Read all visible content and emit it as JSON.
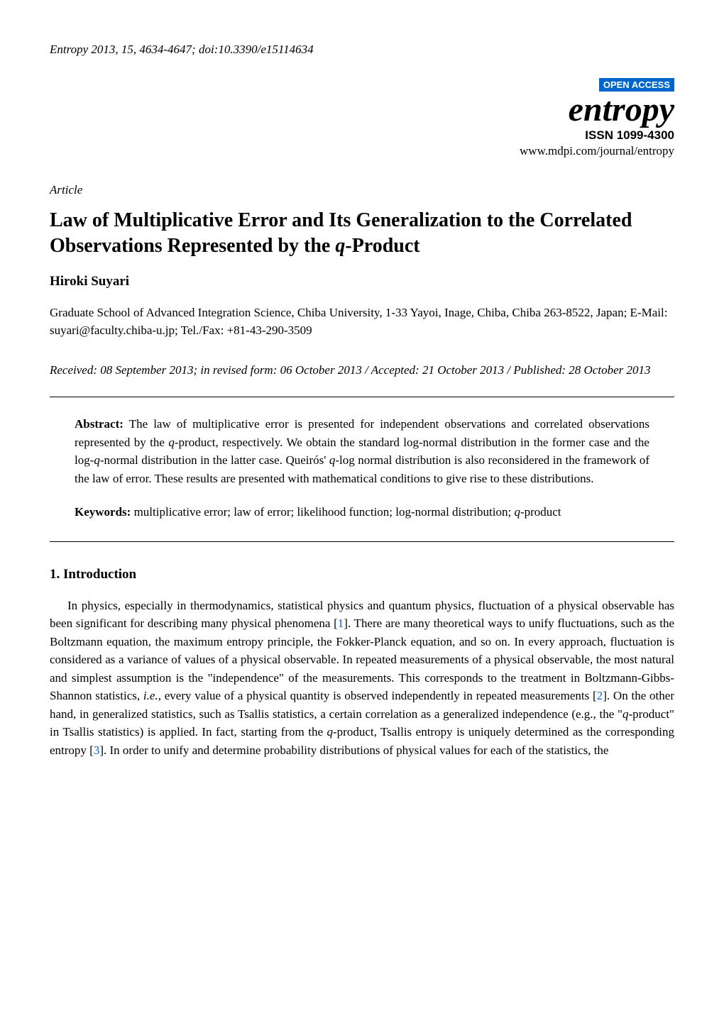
{
  "header": {
    "citation": "Entropy 2013, 15, 4634-4647; doi:10.3390/e15114634"
  },
  "journal": {
    "open_access": "OPEN ACCESS",
    "name": "entropy",
    "issn": "ISSN 1099-4300",
    "url": "www.mdpi.com/journal/entropy"
  },
  "article": {
    "type": "Article",
    "title_part1": "Law of Multiplicative Error and Its Generalization to the Correlated Observations Represented by the ",
    "title_q": "q",
    "title_part2": "-Product",
    "author": "Hiroki Suyari",
    "affiliation": "Graduate School of Advanced Integration Science, Chiba University, 1-33 Yayoi, Inage, Chiba, Chiba 263-8522, Japan; E-Mail: suyari@faculty.chiba-u.jp; Tel./Fax: +81-43-290-3509",
    "dates": "Received: 08 September 2013; in revised form: 06 October 2013 / Accepted: 21 October 2013 / Published: 28 October 2013"
  },
  "abstract": {
    "label": "Abstract:",
    "text_part1": " The law of multiplicative error is presented for independent observations and correlated observations represented by the ",
    "q1": "q",
    "text_part2": "-product, respectively. We obtain the standard log-normal distribution in the former case and the log-",
    "q2": "q",
    "text_part3": "-normal distribution in the latter case. Queirós' ",
    "q3": "q",
    "text_part4": "-log normal distribution is also reconsidered in the framework of the law of error. These results are presented with mathematical conditions to give rise to these distributions."
  },
  "keywords": {
    "label": "Keywords:",
    "text_part1": " multiplicative error; law of error; likelihood function; log-normal distribution; ",
    "q": "q",
    "text_part2": "-product"
  },
  "intro": {
    "heading": "1. Introduction",
    "text_part1": "In physics, especially in thermodynamics, statistical physics and quantum physics, fluctuation of a physical observable has been significant for describing many physical phenomena [",
    "ref1": "1",
    "text_part2": "]. There are many theoretical ways to unify fluctuations, such as the Boltzmann equation, the maximum entropy principle, the Fokker-Planck equation, and so on. In every approach, fluctuation is considered as a variance of values of a physical observable. In repeated measurements of a physical observable, the most natural and simplest assumption is the \"independence\" of the measurements. This corresponds to the treatment in Boltzmann-Gibbs-Shannon statistics, ",
    "ie": "i.e.",
    "text_part3": ", every value of a physical quantity is observed independently in repeated measurements [",
    "ref2": "2",
    "text_part4": "]. On the other hand, in generalized statistics, such as Tsallis statistics, a certain correlation as a generalized independence (e.g., the \"",
    "q1": "q",
    "text_part5": "-product\" in Tsallis statistics) is applied. In fact, starting from the ",
    "q2": "q",
    "text_part6": "-product, Tsallis entropy is uniquely determined as the corresponding entropy [",
    "ref3": "3",
    "text_part7": "]. In order to unify and determine probability distributions of physical values for each of the statistics, the"
  }
}
